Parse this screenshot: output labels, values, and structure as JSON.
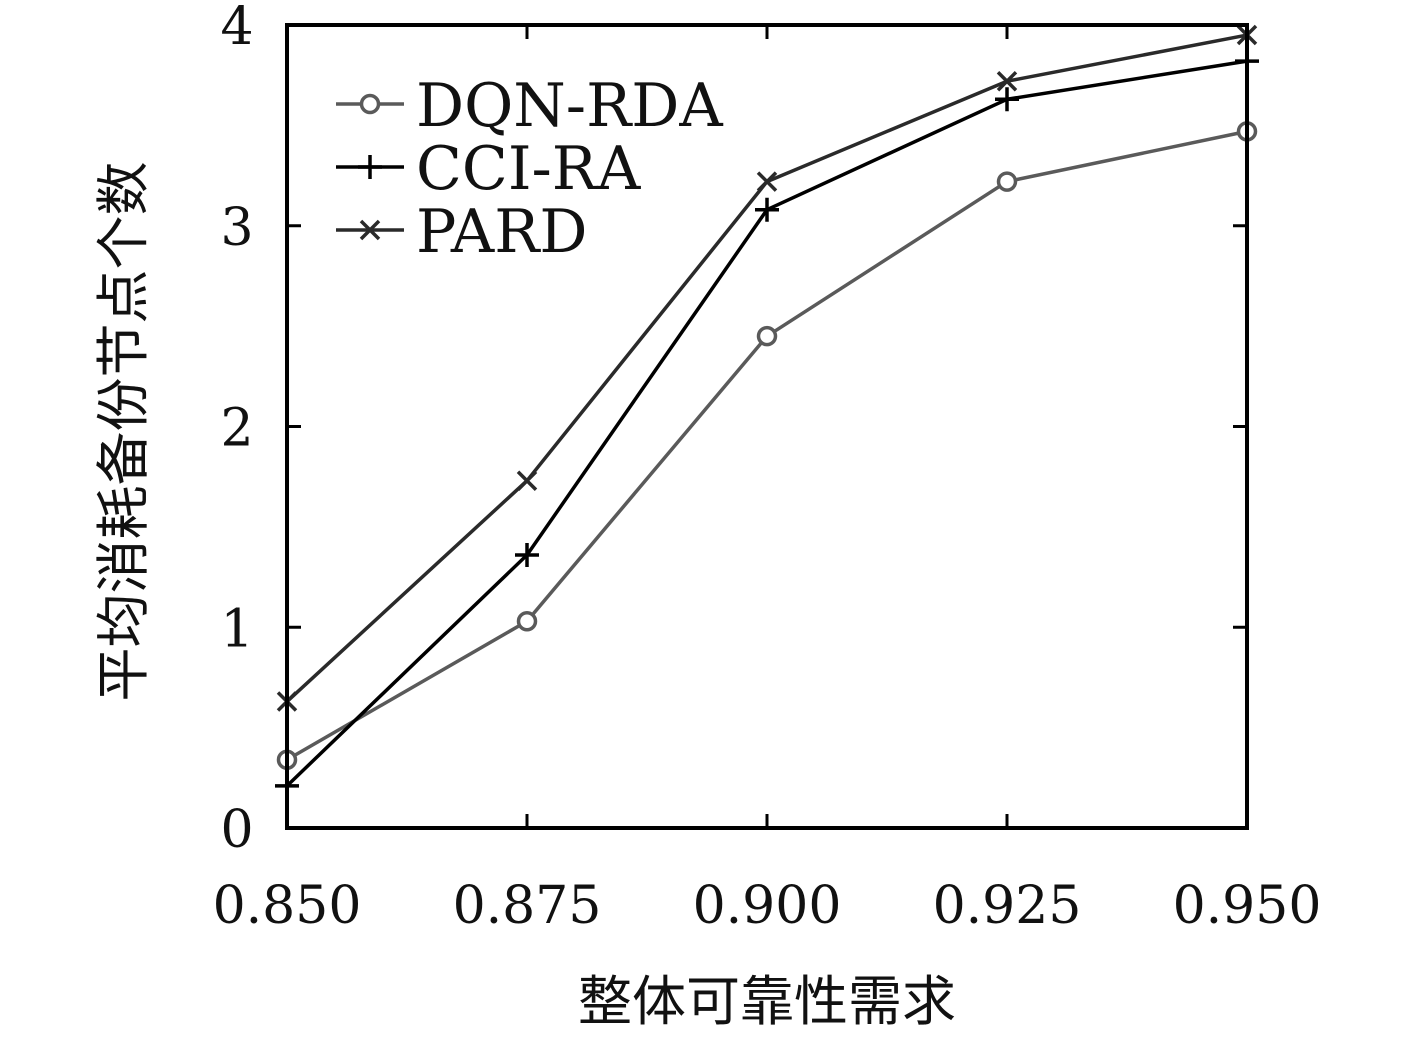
{
  "chart_data": {
    "type": "line",
    "title": "",
    "xlabel": "整体可靠性需求",
    "ylabel": "平均消耗备份节点个数",
    "x": [
      0.85,
      0.875,
      0.9,
      0.925,
      0.95
    ],
    "x_tick_labels": [
      "0.850",
      "0.875",
      "0.900",
      "0.925",
      "0.950"
    ],
    "xlim": [
      0.85,
      0.95
    ],
    "ylim": [
      0,
      4
    ],
    "y_ticks": [
      0,
      1,
      2,
      3,
      4
    ],
    "y_tick_labels": [
      "0",
      "1",
      "2",
      "3",
      "4"
    ],
    "grid": false,
    "legend_position": "top-left",
    "series": [
      {
        "name": "DQN-RDA",
        "marker": "circle",
        "color": "#5a5a5a",
        "values": [
          0.34,
          1.03,
          2.45,
          3.22,
          3.47
        ]
      },
      {
        "name": "CCI-RA",
        "marker": "plus",
        "color": "#000000",
        "values": [
          0.21,
          1.36,
          3.08,
          3.63,
          3.82
        ]
      },
      {
        "name": "PARD",
        "marker": "cross",
        "color": "#2a2a2a",
        "values": [
          0.63,
          1.73,
          3.22,
          3.72,
          3.95
        ]
      }
    ]
  }
}
